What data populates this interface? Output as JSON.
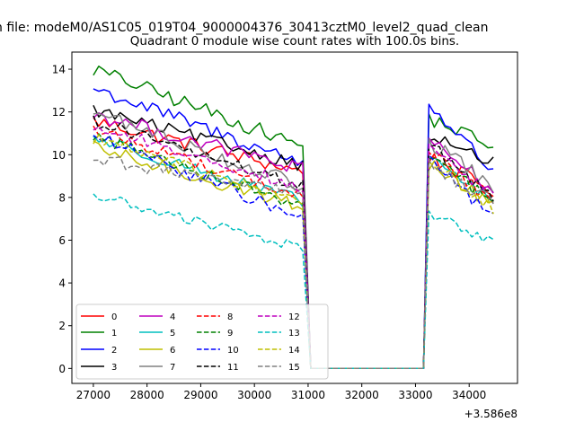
{
  "chart_data": {
    "type": "line",
    "suptitle": "n file: modeM0/AS1C05_019T04_9000004376_30413cztM0_level2_quad_clean",
    "title": "Quadrant 0 module wise count rates with 100.0s bins.",
    "xlabel": "",
    "ylabel": "",
    "x_offset_label": "+3.586e8",
    "xlim": [
      26600,
      34900
    ],
    "ylim": [
      -0.7,
      14.8
    ],
    "xticks": [
      27000,
      28000,
      29000,
      30000,
      31000,
      32000,
      33000,
      34000
    ],
    "xtick_labels": [
      "27000",
      "28000",
      "29000",
      "30000",
      "31000",
      "32000",
      "33000",
      "34000"
    ],
    "yticks": [
      0,
      2,
      4,
      6,
      8,
      10,
      12,
      14
    ],
    "ytick_labels": [
      "0",
      "2",
      "4",
      "6",
      "8",
      "10",
      "12",
      "14"
    ],
    "grid": false,
    "legend_position": "lower-left",
    "legend_columns": 4,
    "segments": {
      "high1": [
        27000,
        30900
      ],
      "drop_to": 31050,
      "gap_end": 33150,
      "high2": [
        33250,
        34450
      ],
      "step": 100
    },
    "series": [
      {
        "name": "0",
        "color": "#ff0000",
        "dash": "solid",
        "start": 11.6,
        "end1": 9.2,
        "start2": 9.9,
        "end2": 8.3,
        "noise": 0.35
      },
      {
        "name": "1",
        "color": "#008000",
        "dash": "solid",
        "start": 14.0,
        "end1": 10.4,
        "start2": 11.7,
        "end2": 10.4,
        "noise": 0.35
      },
      {
        "name": "2",
        "color": "#0000ff",
        "dash": "solid",
        "start": 13.1,
        "end1": 9.6,
        "start2": 12.4,
        "end2": 9.2,
        "noise": 0.35
      },
      {
        "name": "3",
        "color": "#000000",
        "dash": "solid",
        "start": 12.1,
        "end1": 9.5,
        "start2": 10.9,
        "end2": 9.6,
        "noise": 0.3
      },
      {
        "name": "4",
        "color": "#bf00bf",
        "dash": "solid",
        "start": 11.9,
        "end1": 9.3,
        "start2": 10.6,
        "end2": 8.4,
        "noise": 0.35
      },
      {
        "name": "5",
        "color": "#00bfbf",
        "dash": "solid",
        "start": 10.8,
        "end1": 7.8,
        "start2": 9.9,
        "end2": 7.8,
        "noise": 0.3
      },
      {
        "name": "6",
        "color": "#bfbf00",
        "dash": "solid",
        "start": 10.3,
        "end1": 7.6,
        "start2": 9.6,
        "end2": 7.6,
        "noise": 0.35
      },
      {
        "name": "7",
        "color": "#808080",
        "dash": "solid",
        "start": 12.0,
        "end1": 8.5,
        "start2": 10.6,
        "end2": 8.5,
        "noise": 0.35
      },
      {
        "name": "8",
        "color": "#ff0000",
        "dash": "dashed",
        "start": 11.2,
        "end1": 8.0,
        "start2": 10.2,
        "end2": 7.8,
        "noise": 0.3
      },
      {
        "name": "9",
        "color": "#008000",
        "dash": "dashed",
        "start": 10.9,
        "end1": 7.6,
        "start2": 10.1,
        "end2": 7.7,
        "noise": 0.3
      },
      {
        "name": "10",
        "color": "#0000ff",
        "dash": "dashed",
        "start": 10.9,
        "end1": 7.0,
        "start2": 9.9,
        "end2": 7.0,
        "noise": 0.3
      },
      {
        "name": "11",
        "color": "#000000",
        "dash": "dashed",
        "start": 11.6,
        "end1": 8.5,
        "start2": 10.5,
        "end2": 8.0,
        "noise": 0.3
      },
      {
        "name": "12",
        "color": "#bf00bf",
        "dash": "dashed",
        "start": 11.3,
        "end1": 8.5,
        "start2": 10.2,
        "end2": 8.2,
        "noise": 0.3
      },
      {
        "name": "13",
        "color": "#00bfbf",
        "dash": "dashed",
        "start": 8.1,
        "end1": 5.6,
        "start2": 7.3,
        "end2": 5.9,
        "noise": 0.25
      },
      {
        "name": "14",
        "color": "#bfbf00",
        "dash": "dashed",
        "start": 10.8,
        "end1": 7.7,
        "start2": 9.8,
        "end2": 7.5,
        "noise": 0.3
      },
      {
        "name": "15",
        "color": "#808080",
        "dash": "dashed",
        "start": 9.8,
        "end1": 8.2,
        "start2": 9.5,
        "end2": 7.8,
        "noise": 0.3
      }
    ]
  }
}
